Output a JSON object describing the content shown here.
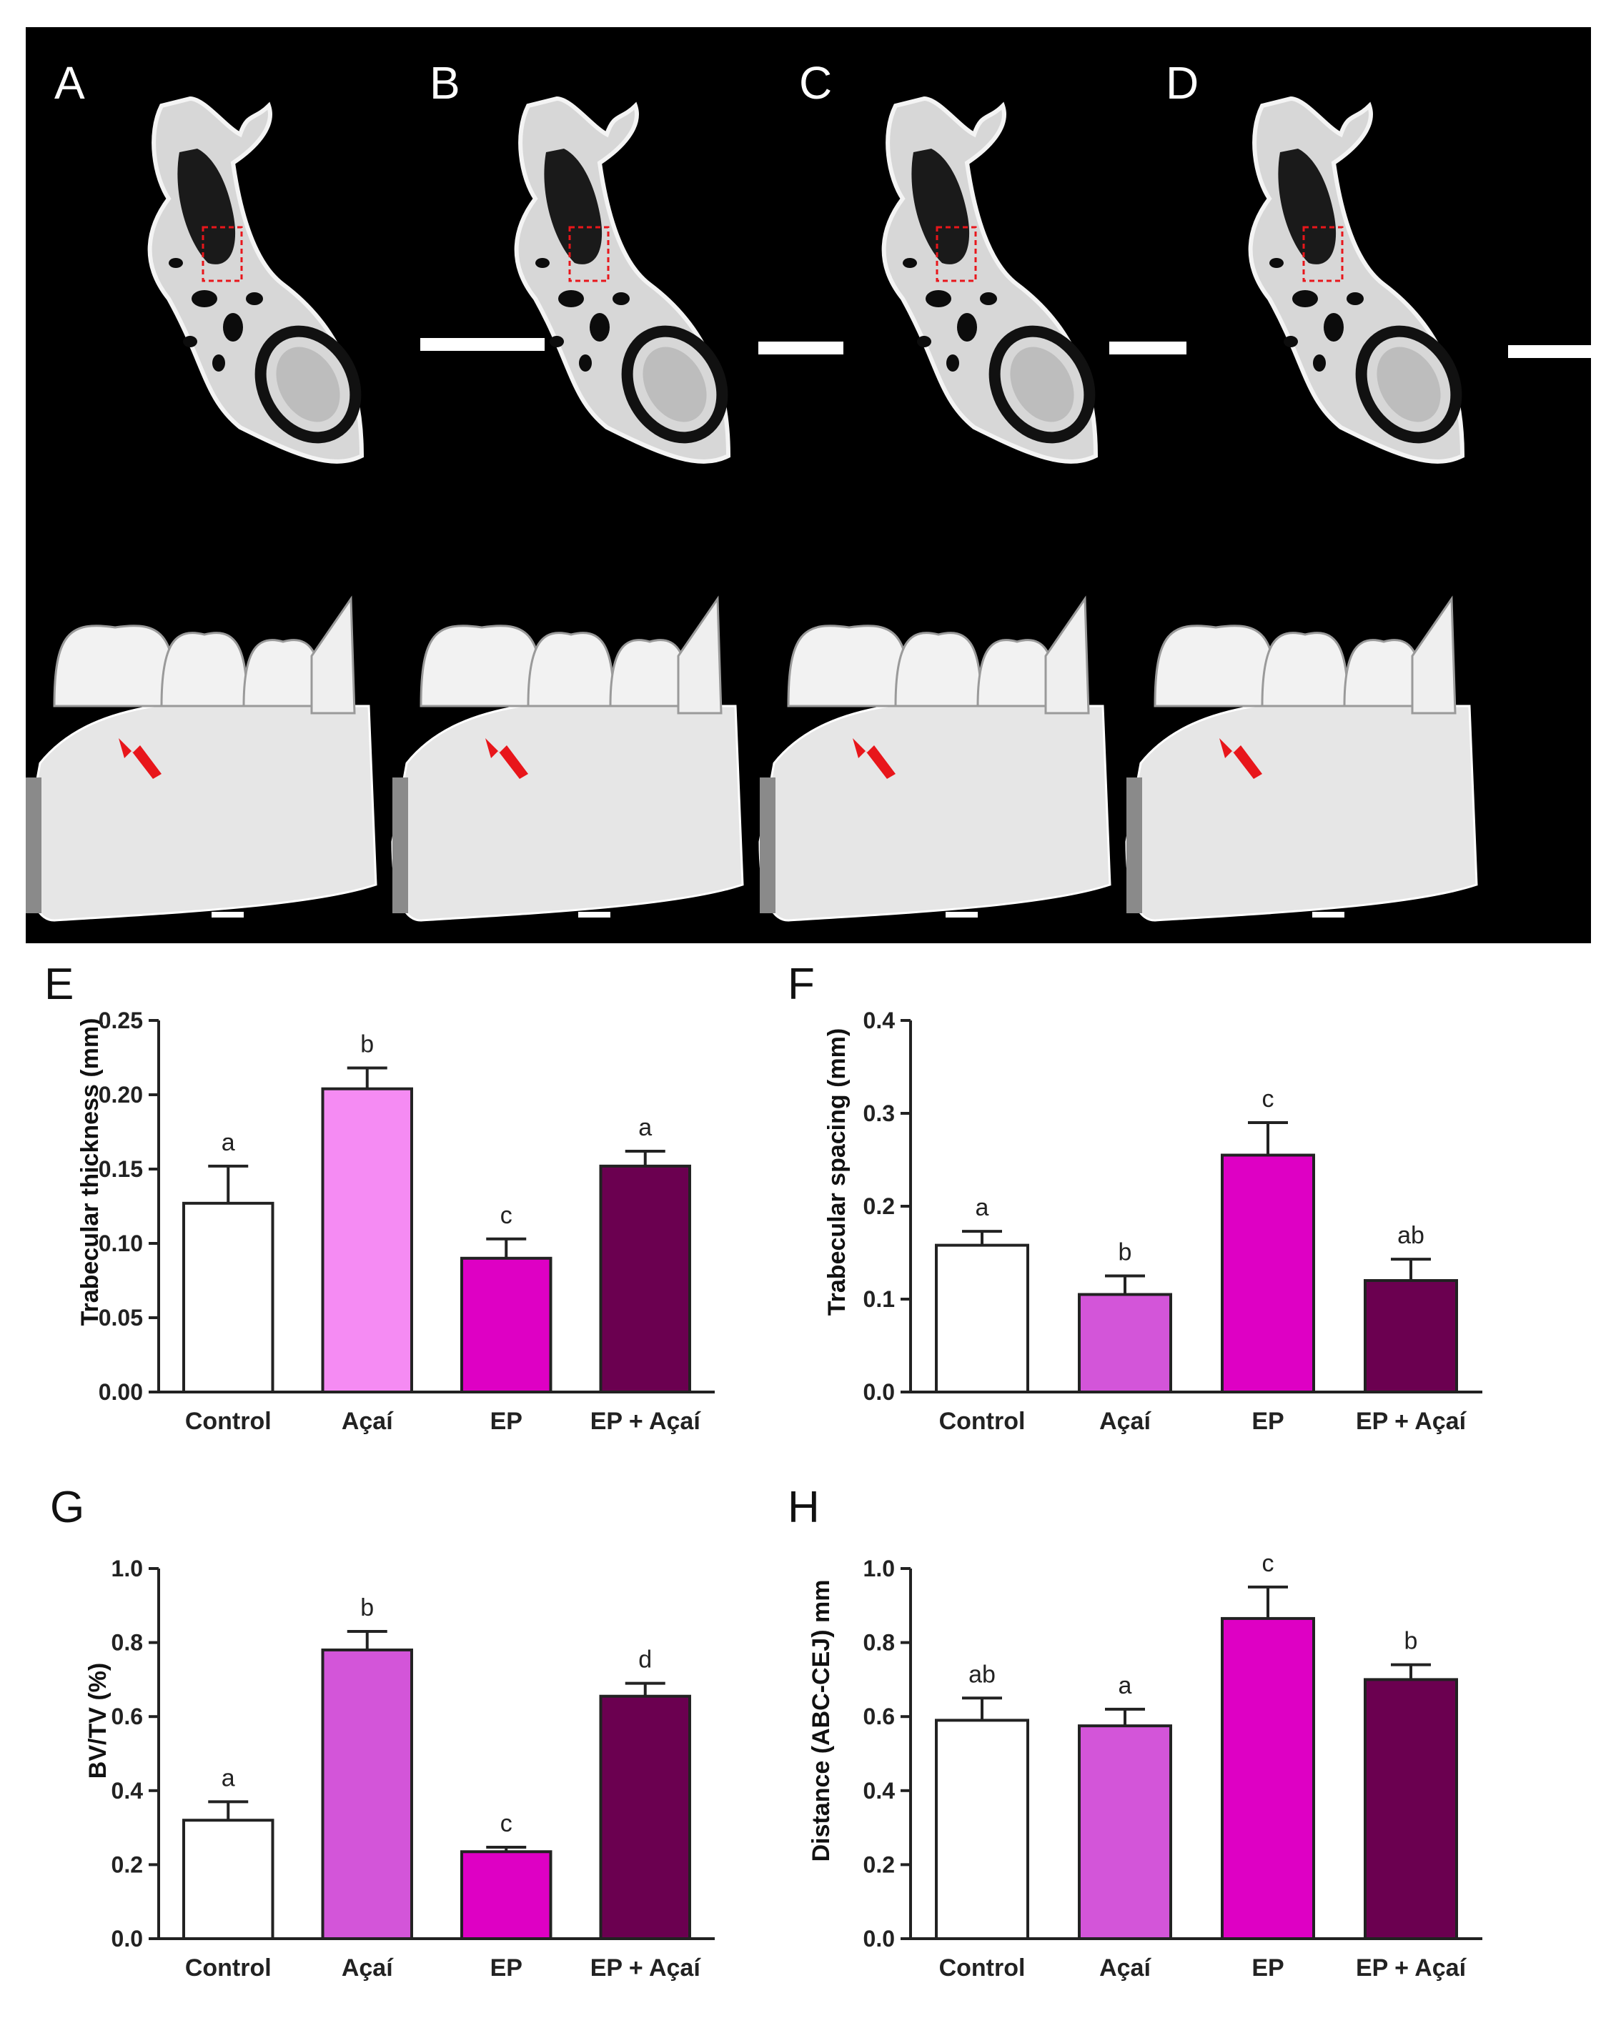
{
  "micro_panels": {
    "labels": [
      "A",
      "B",
      "C",
      "D"
    ],
    "background": "#000000",
    "roi_color": "#e8161b",
    "arrow_color": "#e8161b"
  },
  "chart_data": [
    {
      "panel": "E",
      "type": "bar",
      "categories": [
        "Control",
        "Açaí",
        "EP",
        "EP + Açaí"
      ],
      "values": [
        0.127,
        0.204,
        0.09,
        0.152
      ],
      "errors": [
        0.025,
        0.014,
        0.013,
        0.01
      ],
      "letters": [
        "a",
        "b",
        "c",
        "a"
      ],
      "colors": [
        "#ffffff",
        "#f58bf3",
        "#de00c4",
        "#6b0050"
      ],
      "ylabel": "Trabecular thickness (mm)",
      "ylim": [
        0,
        0.25
      ],
      "yticks": [
        "0.00",
        "0.05",
        "0.10",
        "0.15",
        "0.20",
        "0.25"
      ]
    },
    {
      "panel": "F",
      "type": "bar",
      "categories": [
        "Control",
        "Açaí",
        "EP",
        "EP + Açaí"
      ],
      "values": [
        0.158,
        0.105,
        0.255,
        0.12
      ],
      "errors": [
        0.015,
        0.02,
        0.035,
        0.023
      ],
      "letters": [
        "a",
        "b",
        "c",
        "ab"
      ],
      "colors": [
        "#ffffff",
        "#d355d9",
        "#de00c4",
        "#6b0050"
      ],
      "ylabel": "Trabecular spacing  (mm)",
      "ylim": [
        0,
        0.4
      ],
      "yticks": [
        "0.0",
        "0.1",
        "0.2",
        "0.3",
        "0.4"
      ]
    },
    {
      "panel": "G",
      "type": "bar",
      "categories": [
        "Control",
        "Açaí",
        "EP",
        "EP + Açaí"
      ],
      "values": [
        0.32,
        0.78,
        0.235,
        0.655
      ],
      "errors": [
        0.05,
        0.05,
        0.012,
        0.035
      ],
      "letters": [
        "a",
        "b",
        "c",
        "d"
      ],
      "colors": [
        "#ffffff",
        "#d355d9",
        "#de00c4",
        "#6b0050"
      ],
      "ylabel": "BV/TV (%)",
      "ylim": [
        0,
        1.0
      ],
      "yticks": [
        "0.0",
        "0.2",
        "0.4",
        "0.6",
        "0.8",
        "1.0"
      ]
    },
    {
      "panel": "H",
      "type": "bar",
      "categories": [
        "Control",
        "Açaí",
        "EP",
        "EP + Açaí"
      ],
      "values": [
        0.59,
        0.575,
        0.865,
        0.7
      ],
      "errors": [
        0.06,
        0.045,
        0.085,
        0.04
      ],
      "letters": [
        "ab",
        "a",
        "c",
        "b"
      ],
      "colors": [
        "#ffffff",
        "#d355d9",
        "#de00c4",
        "#6b0050"
      ],
      "ylabel": "Distance (ABC-CEJ) mm",
      "ylim": [
        0,
        1.0
      ],
      "yticks": [
        "0.0",
        "0.2",
        "0.4",
        "0.6",
        "0.8",
        "1.0"
      ]
    }
  ]
}
